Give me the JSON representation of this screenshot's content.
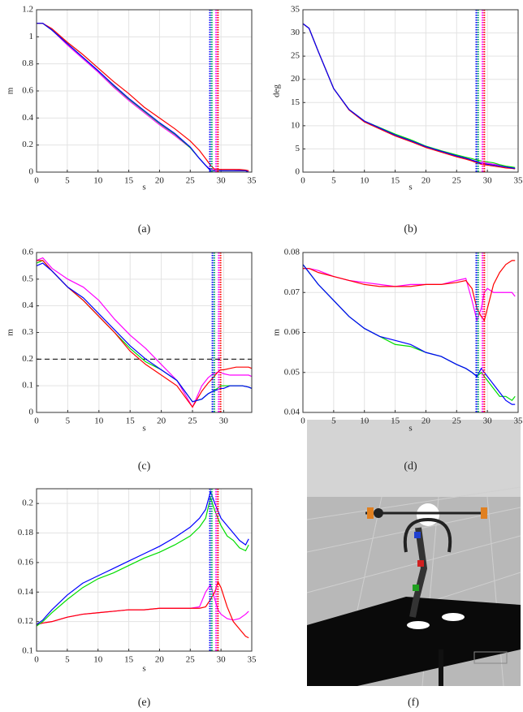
{
  "chart_data": [
    {
      "type": "line",
      "caption": "(a)",
      "xlabel": "s",
      "ylabel": "m",
      "x": [
        0,
        1,
        2.5,
        5,
        7.5,
        10,
        12.5,
        15,
        17.5,
        20,
        22.5,
        25,
        26.5,
        27.5,
        28.3,
        29,
        29.5,
        30,
        31,
        32,
        33,
        34,
        34.5
      ],
      "xlim": [
        0,
        35
      ],
      "xticks": [
        0,
        5,
        10,
        15,
        20,
        25,
        30,
        35
      ],
      "ylim": [
        0,
        1.2
      ],
      "yticks": [
        0,
        0.2,
        0.4,
        0.6,
        0.8,
        1,
        1.2
      ],
      "grid": true,
      "series": [
        {
          "color": "#ff00ff",
          "values": [
            1.1,
            1.1,
            1.05,
            0.94,
            0.84,
            0.74,
            0.63,
            0.53,
            0.44,
            0.35,
            0.27,
            0.18,
            0.1,
            0.05,
            0.02,
            0.02,
            0.02,
            0.02,
            0.02,
            0.02,
            0.015,
            0.01,
            0.01
          ]
        },
        {
          "color": "#00dd00",
          "values": [
            1.1,
            1.1,
            1.05,
            0.95,
            0.85,
            0.75,
            0.64,
            0.54,
            0.45,
            0.36,
            0.28,
            0.18,
            0.1,
            0.05,
            0.01,
            0.01,
            0.01,
            0.01,
            0.01,
            0.01,
            0.01,
            0.01,
            0.0
          ]
        },
        {
          "color": "#ff0000",
          "values": [
            1.1,
            1.1,
            1.06,
            0.96,
            0.87,
            0.77,
            0.67,
            0.58,
            0.48,
            0.4,
            0.32,
            0.23,
            0.16,
            0.1,
            0.05,
            0.02,
            0.02,
            0.02,
            0.02,
            0.02,
            0.02,
            0.015,
            0.01
          ]
        },
        {
          "color": "#0000ff",
          "values": [
            1.1,
            1.1,
            1.05,
            0.95,
            0.85,
            0.75,
            0.645,
            0.545,
            0.455,
            0.365,
            0.285,
            0.185,
            0.1,
            0.05,
            0.01,
            0.01,
            0.01,
            0.01,
            0.01,
            0.01,
            0.01,
            0.01,
            0.0
          ]
        }
      ],
      "vlines": [
        {
          "x": 28.2,
          "color": "#0000ff"
        },
        {
          "x": 28.5,
          "color": "#00aa66"
        },
        {
          "x": 29.2,
          "color": "#ff00ff"
        },
        {
          "x": 29.5,
          "color": "#ff0000"
        }
      ]
    },
    {
      "type": "line",
      "caption": "(b)",
      "xlabel": "s",
      "ylabel": "deg",
      "x": [
        0,
        1,
        2.5,
        5,
        7.5,
        10,
        12.5,
        15,
        17.5,
        20,
        22.5,
        25,
        26.5,
        27.5,
        28.3,
        29,
        29.5,
        30,
        31,
        32,
        33,
        34,
        34.5
      ],
      "xlim": [
        0,
        35
      ],
      "xticks": [
        0,
        5,
        10,
        15,
        20,
        25,
        30,
        35
      ],
      "ylim": [
        0,
        35
      ],
      "yticks": [
        0,
        5,
        10,
        15,
        20,
        25,
        30,
        35
      ],
      "grid": true,
      "series": [
        {
          "color": "#ff00ff",
          "values": [
            32,
            31,
            26,
            18,
            13.5,
            11,
            9.5,
            8,
            6.8,
            5.5,
            4.5,
            3.5,
            3,
            2.6,
            2.3,
            2,
            2,
            1.9,
            1.7,
            1.5,
            1.2,
            1,
            0.8
          ]
        },
        {
          "color": "#00dd00",
          "values": [
            32,
            31,
            26,
            18,
            13.5,
            11,
            9.6,
            8.2,
            7,
            5.6,
            4.6,
            3.7,
            3.2,
            2.9,
            2.6,
            2.4,
            2.3,
            2.2,
            2,
            1.6,
            1.3,
            1.1,
            1
          ]
        },
        {
          "color": "#ff0000",
          "values": [
            32,
            31,
            26,
            18,
            13.4,
            10.8,
            9.3,
            7.8,
            6.6,
            5.3,
            4.3,
            3.3,
            2.8,
            2.4,
            2,
            1.7,
            1.6,
            1.5,
            1.3,
            1.1,
            0.9,
            0.8,
            0.7
          ]
        },
        {
          "color": "#0000ff",
          "values": [
            32,
            31,
            26,
            18,
            13.5,
            11,
            9.5,
            8,
            6.8,
            5.5,
            4.5,
            3.5,
            3,
            2.6,
            2.2,
            1.9,
            1.8,
            1.7,
            1.5,
            1.3,
            1.1,
            0.9,
            0.8
          ]
        }
      ],
      "vlines": [
        {
          "x": 28.2,
          "color": "#0000ff"
        },
        {
          "x": 28.5,
          "color": "#00aa66"
        },
        {
          "x": 29.2,
          "color": "#ff00ff"
        },
        {
          "x": 29.5,
          "color": "#ff0000"
        }
      ]
    },
    {
      "type": "line",
      "caption": "(c)",
      "xlabel": "s",
      "ylabel": "m",
      "x": [
        0,
        1,
        2.5,
        5,
        7.5,
        10,
        12.5,
        15,
        17.5,
        20,
        22.5,
        25,
        26.5,
        27.5,
        28.3,
        29,
        29.5,
        30,
        31,
        32,
        33,
        34,
        34.5
      ],
      "xlim": [
        0,
        34.5
      ],
      "xticks": [
        0,
        5,
        10,
        15,
        20,
        25,
        30
      ],
      "ylim": [
        0,
        0.6
      ],
      "yticks": [
        0,
        0.1,
        0.2,
        0.3,
        0.4,
        0.5,
        0.6
      ],
      "grid": true,
      "hlines": [
        {
          "y": 0.2,
          "color": "#000000"
        }
      ],
      "series": [
        {
          "color": "#ff00ff",
          "values": [
            0.57,
            0.58,
            0.54,
            0.5,
            0.47,
            0.42,
            0.35,
            0.29,
            0.24,
            0.18,
            0.12,
            0.02,
            0.1,
            0.13,
            0.145,
            0.15,
            0.15,
            0.145,
            0.14,
            0.14,
            0.14,
            0.14,
            0.135
          ]
        },
        {
          "color": "#00dd00",
          "values": [
            0.56,
            0.57,
            0.53,
            0.47,
            0.42,
            0.36,
            0.3,
            0.24,
            0.19,
            0.16,
            0.12,
            0.04,
            0.05,
            0.07,
            0.08,
            0.09,
            0.1,
            0.1,
            0.1,
            0.1,
            0.1,
            0.095,
            0.09
          ]
        },
        {
          "color": "#ff0000",
          "values": [
            0.57,
            0.57,
            0.53,
            0.47,
            0.42,
            0.36,
            0.3,
            0.23,
            0.18,
            0.14,
            0.1,
            0.02,
            0.08,
            0.11,
            0.13,
            0.15,
            0.16,
            0.16,
            0.165,
            0.17,
            0.17,
            0.17,
            0.165
          ]
        },
        {
          "color": "#0000ff",
          "values": [
            0.55,
            0.56,
            0.53,
            0.47,
            0.43,
            0.37,
            0.31,
            0.25,
            0.2,
            0.16,
            0.12,
            0.04,
            0.05,
            0.07,
            0.08,
            0.085,
            0.09,
            0.09,
            0.1,
            0.1,
            0.1,
            0.095,
            0.09
          ]
        }
      ],
      "vlines": [
        {
          "x": 28.2,
          "color": "#0000ff"
        },
        {
          "x": 28.5,
          "color": "#00aa66"
        },
        {
          "x": 29.2,
          "color": "#ff00ff"
        },
        {
          "x": 29.5,
          "color": "#ff0000"
        }
      ]
    },
    {
      "type": "line",
      "caption": "(d)",
      "xlabel": "s",
      "ylabel": "m",
      "x": [
        0,
        1,
        2.5,
        5,
        7.5,
        10,
        12.5,
        15,
        17.5,
        20,
        22.5,
        25,
        26.5,
        27.5,
        28.3,
        29,
        29.5,
        30,
        31,
        32,
        33,
        34,
        34.5
      ],
      "xlim": [
        0,
        35
      ],
      "xticks": [
        0,
        5,
        10,
        15,
        20,
        25,
        30,
        35
      ],
      "ylim": [
        0.04,
        0.08
      ],
      "yticks": [
        0.04,
        0.05,
        0.06,
        0.07,
        0.08
      ],
      "grid": true,
      "series": [
        {
          "color": "#ff00ff",
          "values": [
            0.076,
            0.076,
            0.0755,
            0.074,
            0.073,
            0.0725,
            0.072,
            0.0715,
            0.072,
            0.072,
            0.072,
            0.073,
            0.0735,
            0.068,
            0.063,
            0.066,
            0.07,
            0.071,
            0.07,
            0.07,
            0.07,
            0.07,
            0.069
          ]
        },
        {
          "color": "#ff0000",
          "values": [
            0.076,
            0.076,
            0.075,
            0.074,
            0.073,
            0.072,
            0.0715,
            0.0715,
            0.0715,
            0.072,
            0.072,
            0.0725,
            0.073,
            0.071,
            0.066,
            0.064,
            0.063,
            0.066,
            0.072,
            0.075,
            0.077,
            0.078,
            0.078
          ]
        },
        {
          "color": "#00dd00",
          "values": [
            0.077,
            0.075,
            0.072,
            0.068,
            0.064,
            0.061,
            0.059,
            0.057,
            0.0565,
            0.055,
            0.054,
            0.052,
            0.051,
            0.05,
            0.049,
            0.05,
            0.049,
            0.048,
            0.046,
            0.044,
            0.044,
            0.043,
            0.044
          ]
        },
        {
          "color": "#0000ff",
          "values": [
            0.077,
            0.075,
            0.072,
            0.068,
            0.064,
            0.061,
            0.059,
            0.058,
            0.057,
            0.055,
            0.054,
            0.052,
            0.051,
            0.05,
            0.049,
            0.051,
            0.05,
            0.049,
            0.047,
            0.045,
            0.043,
            0.042,
            0.042
          ]
        }
      ],
      "vlines": [
        {
          "x": 28.2,
          "color": "#0000ff"
        },
        {
          "x": 28.5,
          "color": "#00aa66"
        },
        {
          "x": 29.2,
          "color": "#ff00ff"
        },
        {
          "x": 29.5,
          "color": "#ff0000"
        }
      ]
    },
    {
      "type": "line",
      "caption": "(e)",
      "xlabel": "s",
      "x": [
        0,
        1,
        2.5,
        5,
        7.5,
        10,
        12.5,
        15,
        17.5,
        20,
        22.5,
        25,
        26.5,
        27.5,
        28.3,
        29,
        29.5,
        30,
        31,
        32,
        33,
        34,
        34.5
      ],
      "xlim": [
        0,
        35
      ],
      "xticks": [
        0,
        5,
        10,
        15,
        20,
        25,
        30,
        35
      ],
      "ylim": [
        0.1,
        0.21
      ],
      "yticks": [
        0.1,
        0.12,
        0.14,
        0.16,
        0.18,
        0.2
      ],
      "grid": true,
      "series": [
        {
          "color": "#ff00ff",
          "values": [
            0.118,
            0.119,
            0.12,
            0.123,
            0.125,
            0.126,
            0.127,
            0.128,
            0.128,
            0.129,
            0.129,
            0.129,
            0.13,
            0.14,
            0.145,
            0.135,
            0.128,
            0.125,
            0.122,
            0.121,
            0.122,
            0.125,
            0.127
          ]
        },
        {
          "color": "#ff0000",
          "values": [
            0.118,
            0.119,
            0.12,
            0.123,
            0.125,
            0.126,
            0.127,
            0.128,
            0.128,
            0.129,
            0.129,
            0.129,
            0.129,
            0.13,
            0.135,
            0.14,
            0.147,
            0.143,
            0.13,
            0.12,
            0.115,
            0.11,
            0.109
          ]
        },
        {
          "color": "#00dd00",
          "values": [
            0.117,
            0.12,
            0.126,
            0.135,
            0.143,
            0.149,
            0.153,
            0.158,
            0.163,
            0.167,
            0.172,
            0.178,
            0.184,
            0.19,
            0.204,
            0.195,
            0.19,
            0.185,
            0.178,
            0.175,
            0.17,
            0.168,
            0.172
          ]
        },
        {
          "color": "#0000ff",
          "values": [
            0.118,
            0.121,
            0.128,
            0.138,
            0.146,
            0.151,
            0.156,
            0.161,
            0.166,
            0.171,
            0.177,
            0.184,
            0.19,
            0.196,
            0.208,
            0.2,
            0.195,
            0.19,
            0.185,
            0.18,
            0.175,
            0.172,
            0.176
          ]
        }
      ],
      "vlines": [
        {
          "x": 28.2,
          "color": "#0000ff"
        },
        {
          "x": 28.5,
          "color": "#00aa66"
        },
        {
          "x": 29.2,
          "color": "#ff00ff"
        },
        {
          "x": 29.5,
          "color": "#ff0000"
        }
      ]
    }
  ],
  "figure": {
    "caption": "(f)"
  }
}
